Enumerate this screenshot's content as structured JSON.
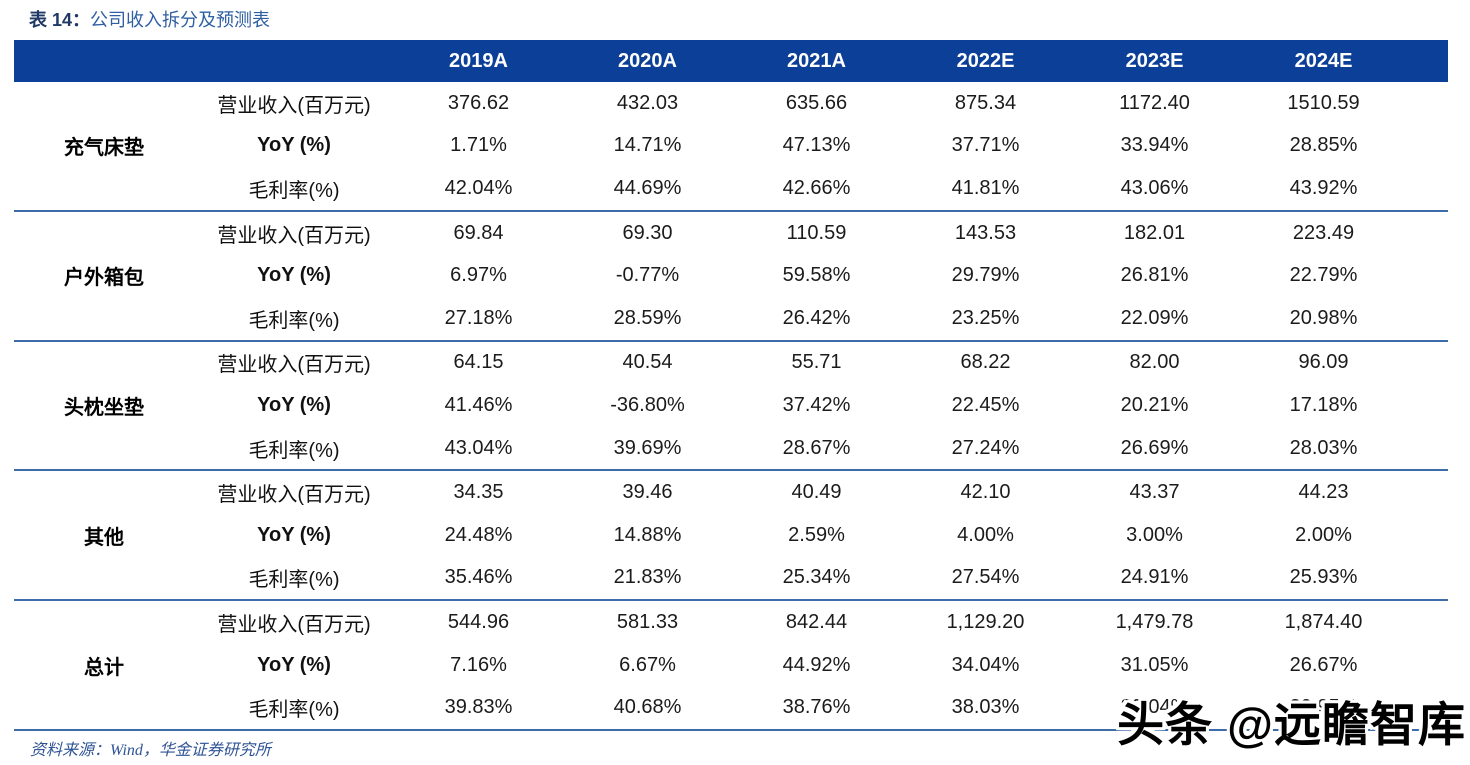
{
  "title": {
    "label": "表 14：",
    "text": "公司收入拆分及预测表"
  },
  "table": {
    "columns": [
      "2019A",
      "2020A",
      "2021A",
      "2022E",
      "2023E",
      "2024E"
    ],
    "groups": [
      {
        "name": "充气床垫",
        "rows": [
          {
            "metric": "营业收入(百万元)",
            "values": [
              "376.62",
              "432.03",
              "635.66",
              "875.34",
              "1172.40",
              "1510.59"
            ]
          },
          {
            "metric": "YoY (%)",
            "values": [
              "1.71%",
              "14.71%",
              "47.13%",
              "37.71%",
              "33.94%",
              "28.85%"
            ]
          },
          {
            "metric": "毛利率(%)",
            "values": [
              "42.04%",
              "44.69%",
              "42.66%",
              "41.81%",
              "43.06%",
              "43.92%"
            ]
          }
        ]
      },
      {
        "name": "户外箱包",
        "rows": [
          {
            "metric": "营业收入(百万元)",
            "values": [
              "69.84",
              "69.30",
              "110.59",
              "143.53",
              "182.01",
              "223.49"
            ]
          },
          {
            "metric": "YoY (%)",
            "values": [
              "6.97%",
              "-0.77%",
              "59.58%",
              "29.79%",
              "26.81%",
              "22.79%"
            ]
          },
          {
            "metric": "毛利率(%)",
            "values": [
              "27.18%",
              "28.59%",
              "26.42%",
              "23.25%",
              "22.09%",
              "20.98%"
            ]
          }
        ]
      },
      {
        "name": "头枕坐垫",
        "rows": [
          {
            "metric": "营业收入(百万元)",
            "values": [
              "64.15",
              "40.54",
              "55.71",
              "68.22",
              "82.00",
              "96.09"
            ]
          },
          {
            "metric": "YoY (%)",
            "values": [
              "41.46%",
              "-36.80%",
              "37.42%",
              "22.45%",
              "20.21%",
              "17.18%"
            ]
          },
          {
            "metric": "毛利率(%)",
            "values": [
              "43.04%",
              "39.69%",
              "28.67%",
              "27.24%",
              "26.69%",
              "28.03%"
            ]
          }
        ]
      },
      {
        "name": "其他",
        "rows": [
          {
            "metric": "营业收入(百万元)",
            "values": [
              "34.35",
              "39.46",
              "40.49",
              "42.10",
              "43.37",
              "44.23"
            ]
          },
          {
            "metric": "YoY (%)",
            "values": [
              "24.48%",
              "14.88%",
              "2.59%",
              "4.00%",
              "3.00%",
              "2.00%"
            ]
          },
          {
            "metric": "毛利率(%)",
            "values": [
              "35.46%",
              "21.83%",
              "25.34%",
              "27.54%",
              "24.91%",
              "25.93%"
            ]
          }
        ]
      },
      {
        "name": "总计",
        "rows": [
          {
            "metric": "营业收入(百万元)",
            "values": [
              "544.96",
              "581.33",
              "842.44",
              "1,129.20",
              "1,479.78",
              "1,874.40"
            ]
          },
          {
            "metric": "YoY (%)",
            "values": [
              "7.16%",
              "6.67%",
              "44.92%",
              "34.04%",
              "31.05%",
              "26.67%"
            ]
          },
          {
            "metric": "毛利率(%)",
            "values": [
              "39.83%",
              "40.68%",
              "38.76%",
              "38.03%",
              "39.04%",
              "39.95%"
            ]
          }
        ]
      }
    ]
  },
  "footer": {
    "source": "资料来源：Wind，华金证券研究所"
  },
  "watermark": {
    "text": "头条 @远瞻智库"
  },
  "colors": {
    "header_bg": "#0C3F97",
    "separator_line": "#3E6CA9",
    "title_label": "#1F3864",
    "title_text": "#2E5FA3",
    "source_text": "#2F5496"
  }
}
